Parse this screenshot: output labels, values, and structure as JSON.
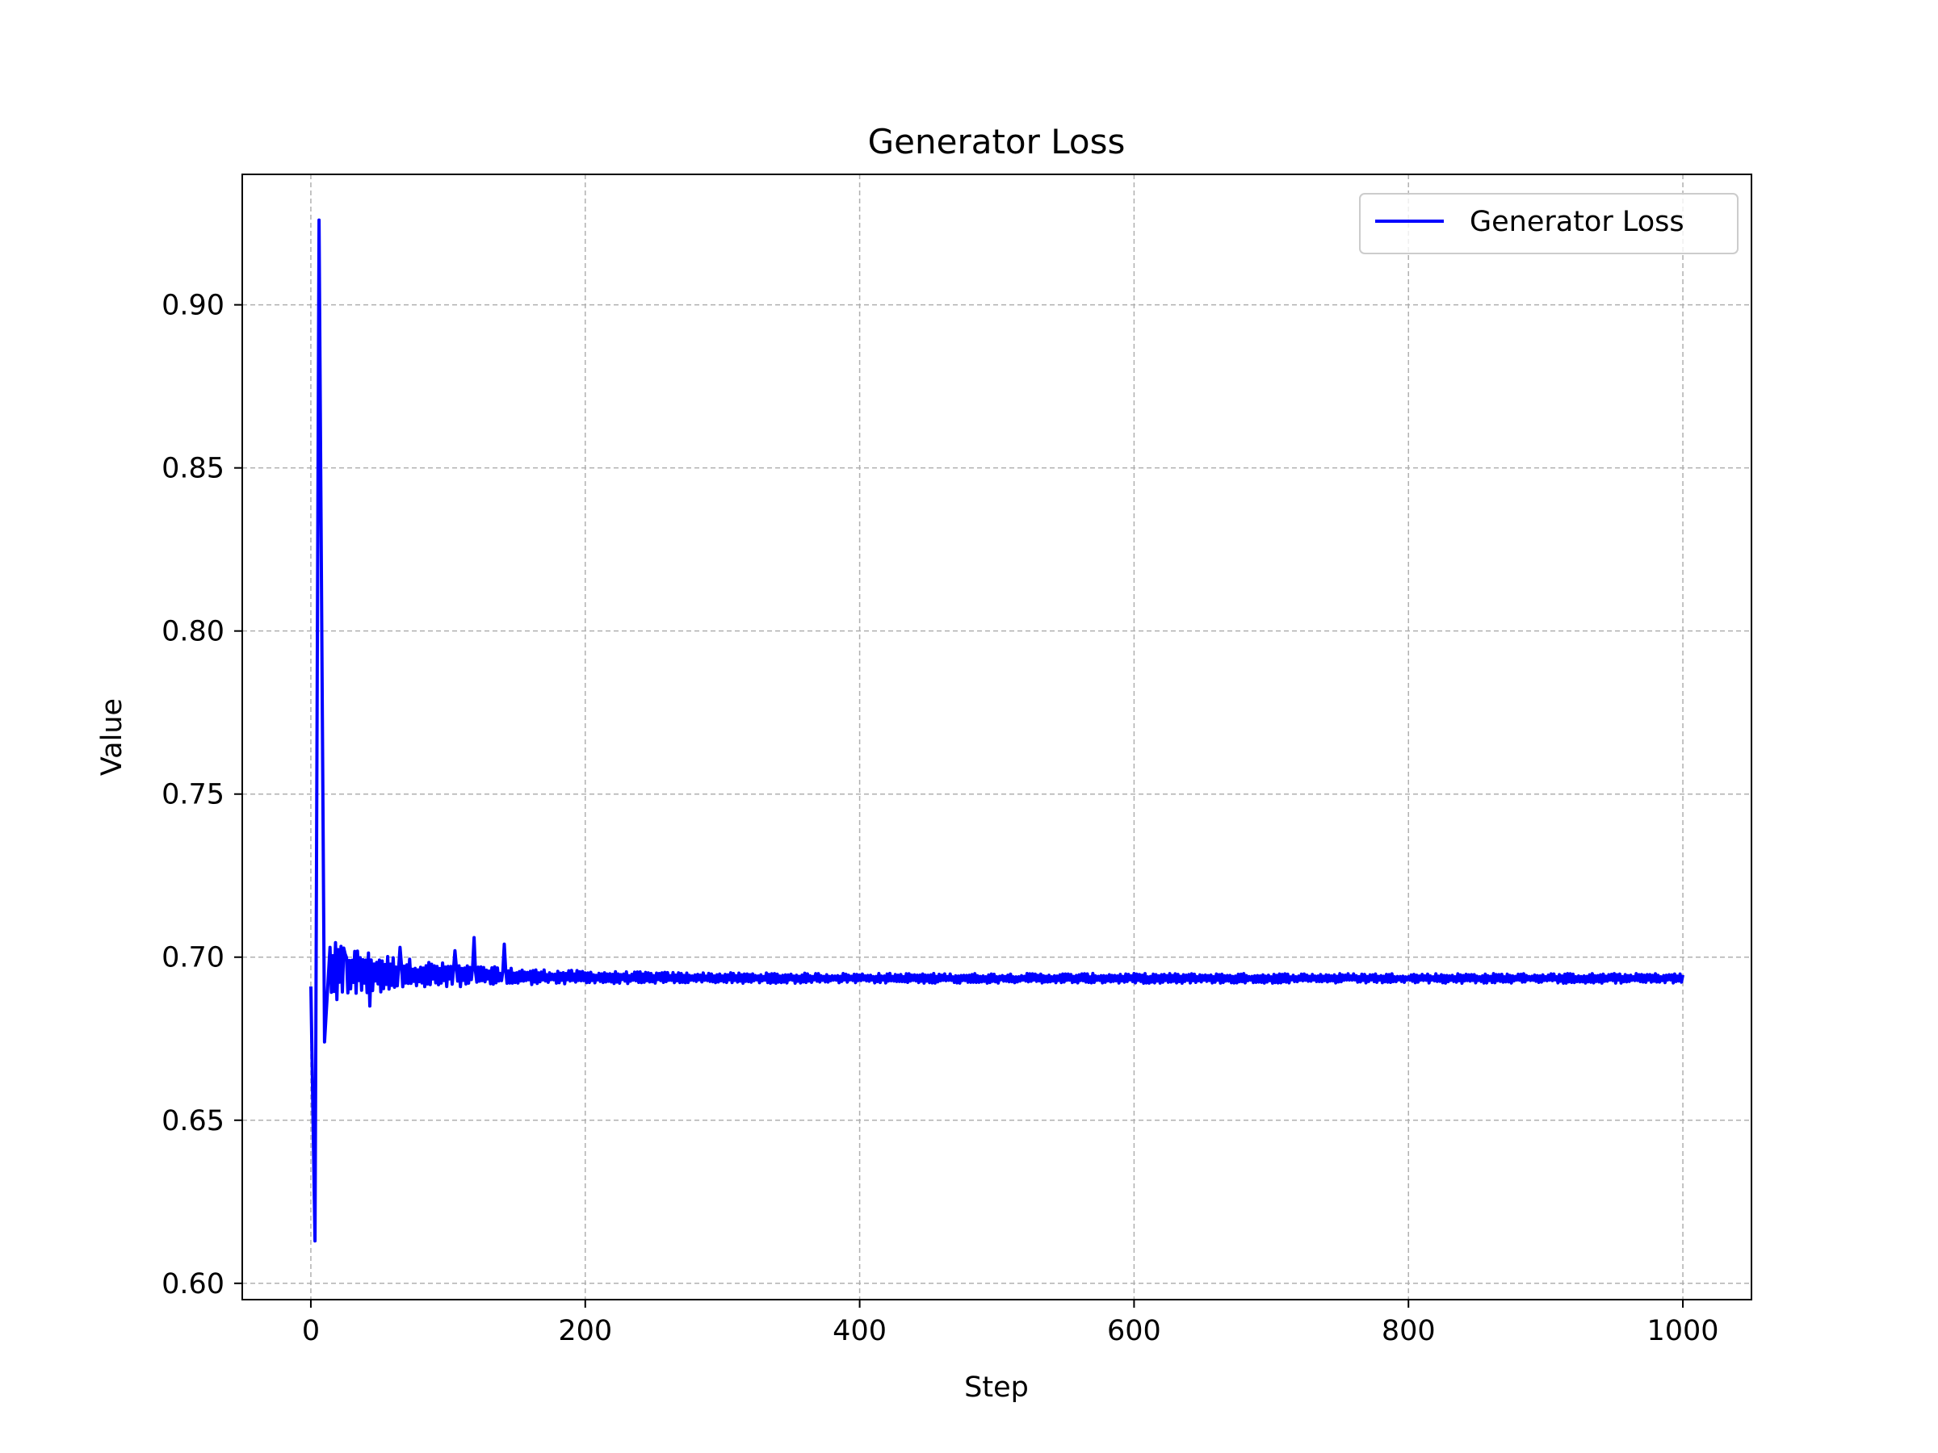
{
  "chart_data": {
    "type": "line",
    "title": "Generator Loss",
    "xlabel": "Step",
    "ylabel": "Value",
    "xlim": [
      -50,
      1050
    ],
    "ylim": [
      0.595,
      0.94
    ],
    "x_ticks": [
      0,
      200,
      400,
      600,
      800,
      1000
    ],
    "y_ticks": [
      0.6,
      0.65,
      0.7,
      0.75,
      0.8,
      0.85,
      0.9
    ],
    "grid": true,
    "legend_position": "top-right",
    "colors": {
      "line": "#0000ff",
      "grid": "#b0b0b0",
      "axes": "#000000"
    },
    "series": [
      {
        "name": "Generator Loss",
        "x_range": [
          0,
          1000
        ],
        "key_points": [
          [
            0,
            0.691
          ],
          [
            3,
            0.613
          ],
          [
            6,
            0.926
          ],
          [
            10,
            0.674
          ],
          [
            14,
            0.703
          ],
          [
            19,
            0.687
          ],
          [
            25,
            0.701
          ],
          [
            43,
            0.685
          ],
          [
            65,
            0.703
          ],
          [
            105,
            0.702
          ],
          [
            119,
            0.706
          ],
          [
            141,
            0.704
          ],
          [
            163,
            0.688
          ],
          [
            200,
            0.697
          ],
          [
            300,
            0.694
          ],
          [
            400,
            0.694
          ],
          [
            538,
            0.691
          ],
          [
            600,
            0.694
          ],
          [
            800,
            0.693
          ],
          [
            1000,
            0.694
          ]
        ]
      }
    ]
  }
}
